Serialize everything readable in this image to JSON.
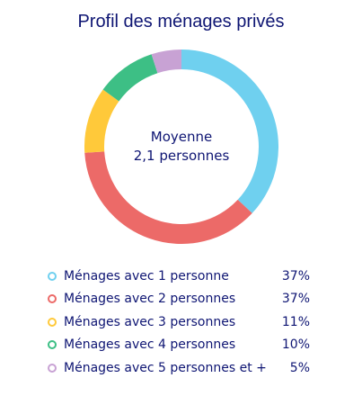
{
  "title": "Profil des ménages privés",
  "center": {
    "line1": "Moyenne",
    "line2": "2,1 personnes"
  },
  "legend": [
    {
      "label": "Ménages avec 1 personne",
      "value": "37%"
    },
    {
      "label": "Ménages avec 2 personnes",
      "value": "37%"
    },
    {
      "label": "Ménages avec 3 personnes",
      "value": "11%"
    },
    {
      "label": "Ménages avec 4 personnes",
      "value": "10%"
    },
    {
      "label": "Ménages avec 5 personnes et +",
      "value": "5%"
    }
  ],
  "chart_data": {
    "type": "pie",
    "variant": "donut",
    "title": "Profil des ménages privés",
    "categories": [
      "Ménages avec 1 personne",
      "Ménages avec 2 personnes",
      "Ménages avec 3 personnes",
      "Ménages avec 4 personnes",
      "Ménages avec 5 personnes et +"
    ],
    "values": [
      37,
      37,
      11,
      10,
      5
    ],
    "unit": "%",
    "colors": [
      "#6fd0ef",
      "#ec6a68",
      "#ffc93a",
      "#3dbf85",
      "#c8a2d4"
    ],
    "center_text": [
      "Moyenne",
      "2,1 personnes"
    ],
    "legend_position": "bottom"
  }
}
